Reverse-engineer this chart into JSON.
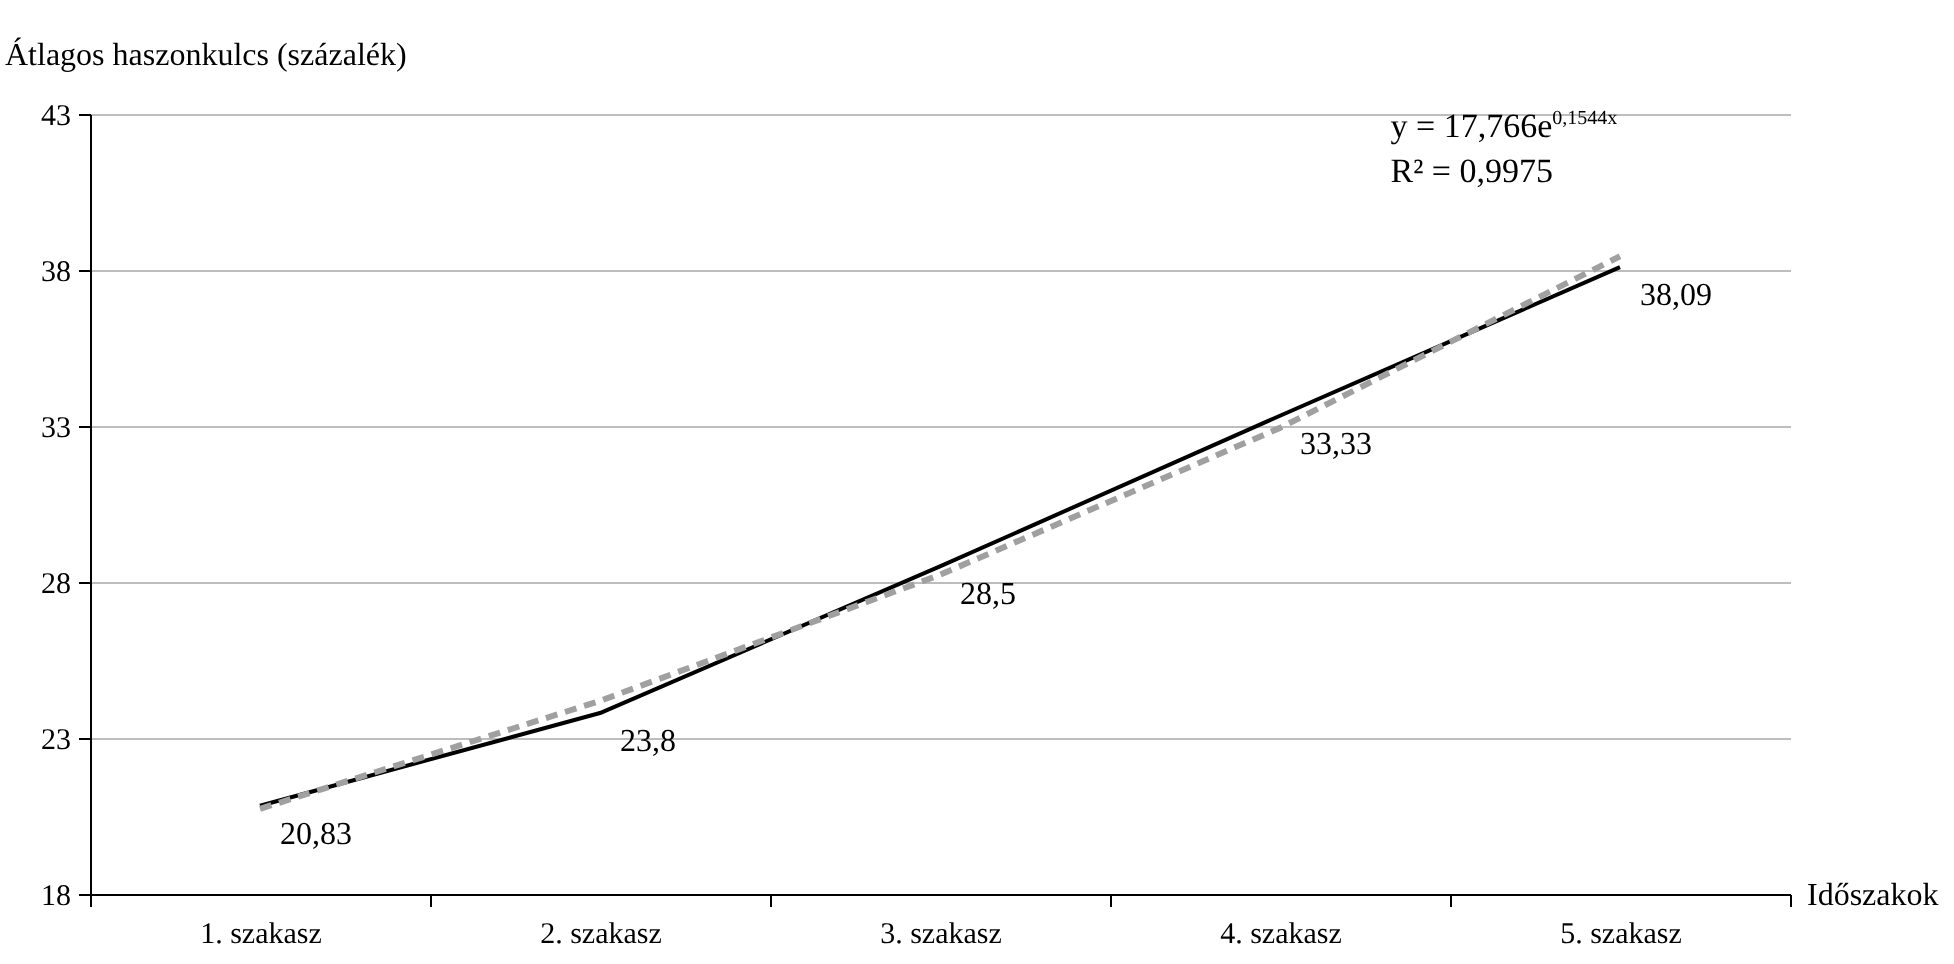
{
  "chart_data": {
    "type": "line",
    "xlabel": "Időszakok",
    "ylabel": "Átlagos haszonkulcs (százalék)",
    "categories": [
      "1. szakasz",
      "2. szakasz",
      "3. szakasz",
      "4. szakasz",
      "5. szakasz"
    ],
    "ylim": [
      18,
      43
    ],
    "yticks": [
      18,
      23,
      28,
      33,
      38,
      43
    ],
    "grid": "y",
    "marker": "none",
    "series": [
      {
        "color": "#000000",
        "line_style": "solid",
        "values": [
          20.83,
          23.8,
          28.5,
          33.33,
          38.09
        ],
        "value_labels": [
          "20,83",
          "23,8",
          "28,5",
          "33,33",
          "38,09"
        ]
      },
      {
        "color": "#a0a0a0",
        "line_style": "dashed",
        "values": [
          20.73,
          24.19,
          28.23,
          32.94,
          38.44
        ]
      }
    ],
    "annotations": [
      "y = 17,766e$^{0,1544x}$",
      "R² = 0,9975"
    ]
  }
}
